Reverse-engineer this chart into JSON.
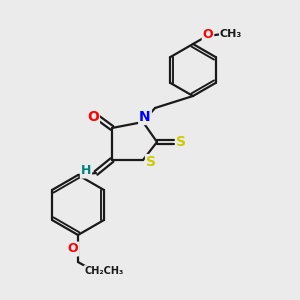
{
  "bg_color": "#ebebeb",
  "bond_color": "#1a1a1a",
  "bond_width": 1.6,
  "N_color": "#0000ff",
  "S_color": "#cccc00",
  "O_color": "#ff0000",
  "H_color": "#008080",
  "font_size": 9,
  "figsize": [
    3.0,
    3.0
  ],
  "dpi": 100,
  "xlim": [
    0,
    300
  ],
  "ylim": [
    0,
    300
  ]
}
